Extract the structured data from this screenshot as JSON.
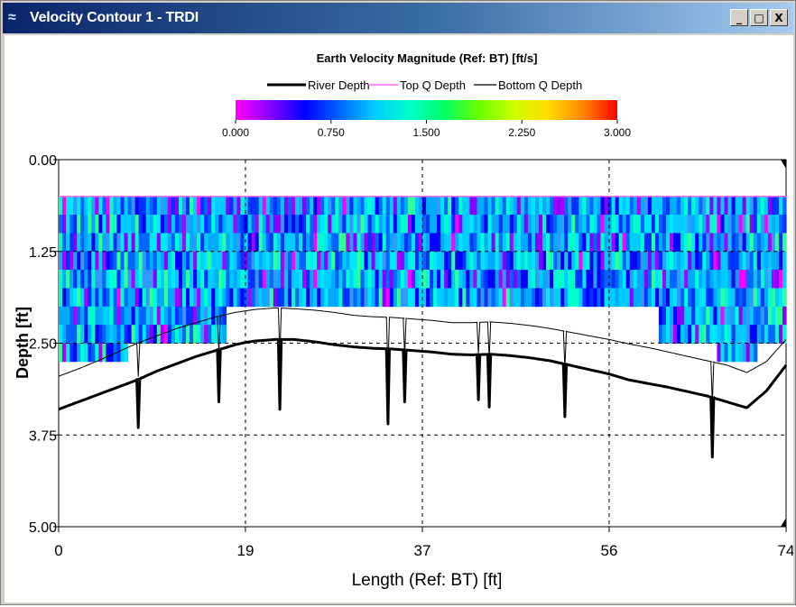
{
  "window": {
    "title": "Velocity Contour 1 - TRDI",
    "icon": "wave-icon",
    "buttons": {
      "minimize": "_",
      "maximize": "□",
      "close": "X"
    }
  },
  "chart_data": {
    "type": "heatmap",
    "title": "Earth Velocity Magnitude (Ref: BT) [ft/s]",
    "xlabel": "Length (Ref: BT) [ft]",
    "ylabel": "Depth [ft]",
    "xlim": [
      0,
      74
    ],
    "ylim": [
      0,
      5
    ],
    "y_inverted": true,
    "x_ticks": [
      "0",
      "19",
      "37",
      "56",
      "74"
    ],
    "y_ticks": [
      "0.00",
      "1.25",
      "2.50",
      "3.75",
      "5.00"
    ],
    "grid": "dashed",
    "legend": [
      "River Depth",
      "Top Q Depth",
      "Bottom Q Depth"
    ],
    "colorbar": {
      "ticks": [
        "0.000",
        "0.750",
        "1.500",
        "2.250",
        "3.000"
      ],
      "range": [
        0,
        3
      ],
      "colors": [
        "#ff00ff",
        "#8800ff",
        "#0000ff",
        "#0066ff",
        "#00ccff",
        "#00ffcc",
        "#00ff66",
        "#66ff00",
        "#ccff00",
        "#ffdd00",
        "#ff8800",
        "#ff0000"
      ]
    },
    "top_q_depth": 0.5,
    "river_depth": {
      "x": [
        0,
        2,
        4,
        6,
        8,
        10,
        12,
        14,
        16,
        18,
        19,
        20,
        22,
        24,
        26,
        28,
        30,
        32,
        34,
        36,
        38,
        40,
        42,
        44,
        46,
        48,
        50,
        52,
        54,
        56,
        58,
        60,
        62,
        64,
        66,
        68,
        70,
        72,
        74
      ],
      "y": [
        3.4,
        3.3,
        3.2,
        3.1,
        3.0,
        2.88,
        2.78,
        2.68,
        2.6,
        2.52,
        2.49,
        2.47,
        2.45,
        2.45,
        2.48,
        2.52,
        2.55,
        2.57,
        2.58,
        2.6,
        2.62,
        2.65,
        2.66,
        2.65,
        2.67,
        2.7,
        2.74,
        2.8,
        2.86,
        2.92,
        3.0,
        3.05,
        3.1,
        3.16,
        3.22,
        3.3,
        3.38,
        3.15,
        2.8
      ]
    },
    "bottom_q_depth": {
      "x": [
        0,
        2,
        4,
        6,
        8,
        10,
        12,
        14,
        16,
        18,
        19,
        20,
        22,
        24,
        26,
        28,
        30,
        32,
        34,
        36,
        38,
        40,
        42,
        44,
        46,
        48,
        50,
        52,
        54,
        56,
        58,
        60,
        62,
        64,
        66,
        68,
        70,
        72,
        74
      ],
      "y": [
        2.95,
        2.85,
        2.74,
        2.62,
        2.5,
        2.4,
        2.3,
        2.22,
        2.14,
        2.08,
        2.06,
        2.04,
        2.02,
        2.03,
        2.05,
        2.08,
        2.12,
        2.14,
        2.15,
        2.17,
        2.19,
        2.22,
        2.22,
        2.21,
        2.23,
        2.26,
        2.3,
        2.35,
        2.4,
        2.45,
        2.51,
        2.56,
        2.62,
        2.68,
        2.74,
        2.8,
        2.9,
        2.75,
        2.45
      ]
    },
    "spikes": [
      {
        "x": 8.1,
        "depth": 3.2
      },
      {
        "x": 16.3,
        "depth": 2.85
      },
      {
        "x": 22.5,
        "depth": 2.95
      },
      {
        "x": 33.5,
        "depth": 3.15
      },
      {
        "x": 35.2,
        "depth": 2.85
      },
      {
        "x": 42.7,
        "depth": 2.82
      },
      {
        "x": 43.8,
        "depth": 2.92
      },
      {
        "x": 51.5,
        "depth": 3.05
      },
      {
        "x": 66.5,
        "depth": 3.6
      }
    ],
    "data_band_floor": [
      {
        "x_from": 0,
        "x_to": 7,
        "depth": 2.75
      },
      {
        "x_from": 7,
        "x_to": 17,
        "depth": 2.5
      },
      {
        "x_from": 17,
        "x_to": 61,
        "depth": 2.0
      },
      {
        "x_from": 61,
        "x_to": 67,
        "depth": 2.5
      },
      {
        "x_from": 67,
        "x_to": 71,
        "depth": 2.75
      },
      {
        "x_from": 71,
        "x_to": 74,
        "depth": 2.5
      }
    ]
  }
}
